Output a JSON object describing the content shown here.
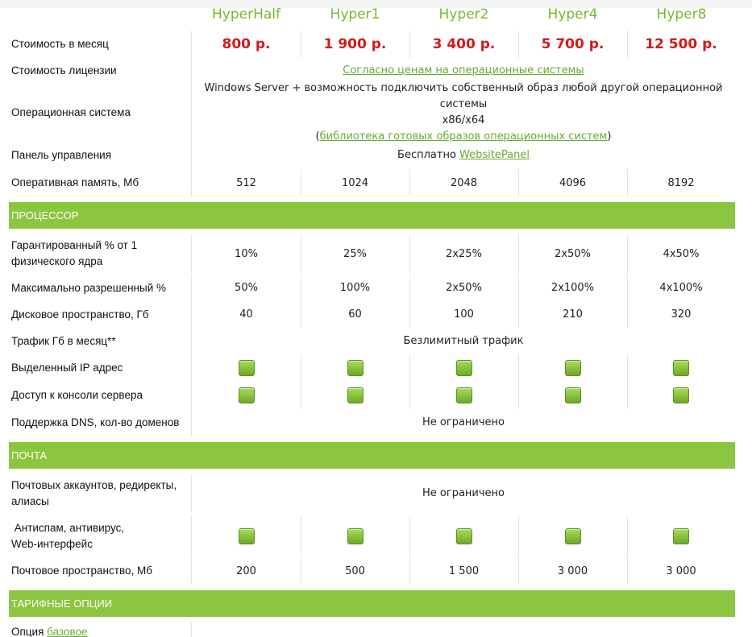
{
  "plans": [
    "HyperHalf",
    "Hyper1",
    "Hyper2",
    "Hyper4",
    "Hyper8"
  ],
  "rows": {
    "price": {
      "label": "Стоимость в месяц",
      "values": [
        "800 р.",
        "1 900 р.",
        "3 400 р.",
        "5 700 р.",
        "12 500 р."
      ]
    },
    "license": {
      "label": "Стоимость лицензии",
      "link": "Согласно ценам на операционные системы"
    },
    "os": {
      "label": "Операционная система",
      "line1": "Windows Server + возможность подключить собственный образ любой другой операционной системы",
      "line2": "x86/x64",
      "paren_open": "(",
      "link": "библиотека готовых образов операционных систем",
      "paren_close": ")"
    },
    "panel": {
      "label": "Панель управления",
      "text": "Бесплатно ",
      "link": "WebsitePanel"
    },
    "ram": {
      "label": "Оперативная память, Мб",
      "values": [
        "512",
        "1024",
        "2048",
        "4096",
        "8192"
      ]
    }
  },
  "sections": {
    "cpu": "ПРОЦЕССОР",
    "mail": "ПОЧТА",
    "options": "ТАРИФНЫЕ ОПЦИИ"
  },
  "cpu_rows": {
    "guaranteed": {
      "label_line1": "Гарантированный % от 1",
      "label_line2": "физического ядра",
      "values": [
        "10%",
        "25%",
        "2x25%",
        "2x50%",
        "4x50%"
      ]
    },
    "max": {
      "label": "Максимально разрешенный %",
      "values": [
        "50%",
        "100%",
        "2x50%",
        "2x100%",
        "4x100%"
      ]
    },
    "disk": {
      "label": "Дисковое пространство, Гб",
      "values": [
        "40",
        "60",
        "100",
        "210",
        "320"
      ]
    },
    "traffic": {
      "label": "Трафик Гб в месяц**",
      "text": "Безлимитный трафик"
    },
    "ip": {
      "label": "Выделенный IP адрес"
    },
    "console": {
      "label": "Доступ к консоли сервера"
    },
    "dns": {
      "label": "Поддержка DNS, кол-во доменов",
      "text": "Не ограничено"
    }
  },
  "mail_rows": {
    "accounts": {
      "label_line1": "Почтовых аккаунтов, редиректы,",
      "label_line2": "алиасы",
      "text": "Не ограничено"
    },
    "antispam": {
      "label_line1": " Антиспам, антивирус,",
      "label_line2": "Web-интерфейс"
    },
    "space": {
      "label": "Почтовое пространство, Мб",
      "values": [
        "200",
        "500",
        "1 500",
        "3 000",
        "3 000"
      ]
    }
  },
  "options_rows": {
    "option": {
      "label": "Опция ",
      "link": "базовое"
    }
  },
  "colors": {
    "accent": "#8cc53f",
    "price": "#d11a1a",
    "link": "#69a834"
  },
  "icons": {
    "check": "green-check-box-icon"
  }
}
